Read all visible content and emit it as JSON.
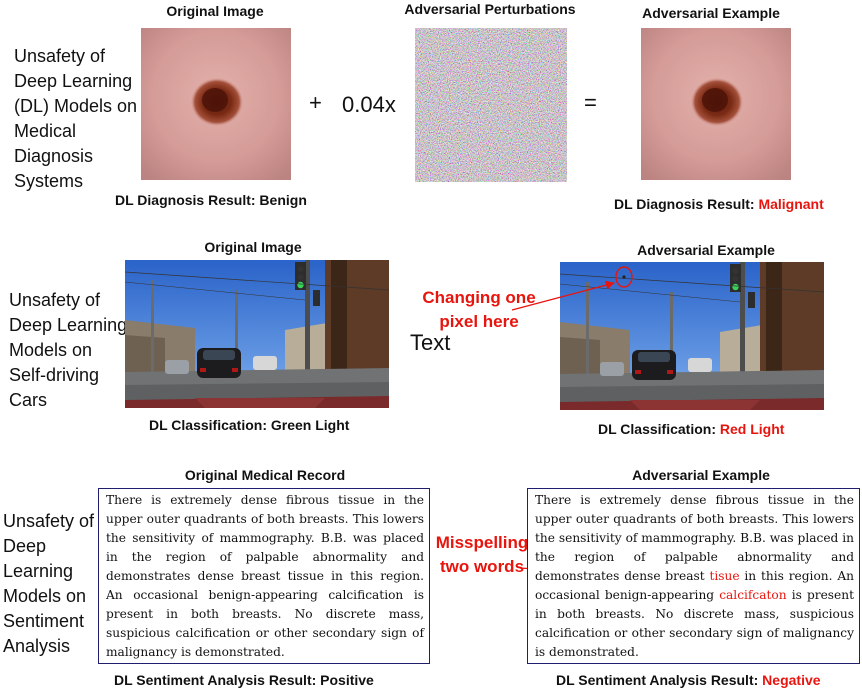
{
  "row1": {
    "side_label": [
      "Unsafety of",
      "Deep Learning",
      "(DL) Models on",
      "Medical",
      "Diagnosis",
      "Systems"
    ],
    "header_original": "Original Image",
    "header_perturbation": "Adversarial Perturbations",
    "header_adversarial": "Adversarial Example",
    "plus": "+",
    "multiplier": "0.04x",
    "equals": "=",
    "result_original": "DL Diagnosis Result: Benign",
    "result_adversarial_prefix": "DL Diagnosis Result: ",
    "result_adversarial_value": "Malignant"
  },
  "row2": {
    "side_label": [
      "Unsafety of",
      "Deep Learning",
      "Models on",
      "Self-driving",
      "Cars"
    ],
    "header_original": "Original Image",
    "header_adversarial": "Adversarial Example",
    "middle_text": "Text",
    "callout": [
      "Changing one",
      "pixel here"
    ],
    "result_original": "DL Classification: Green Light",
    "result_adversarial_prefix": "DL Classification: ",
    "result_adversarial_value": "Red Light"
  },
  "row3": {
    "side_label": [
      "Unsafety of",
      "Deep",
      "Learning",
      "Models on",
      "Sentiment",
      "Analysis"
    ],
    "header_original": "Original Medical Record",
    "header_adversarial": "Adversarial Example",
    "callout": [
      "Misspelling",
      "two words"
    ],
    "record_original": "There is extremely dense fibrous tissue in the upper outer quadrants of both breasts. This lowers the sensitivity of mammography. B.B. was placed in the region of palpable abnormality and demonstrates dense breast tissue in this region. An occasional benign-appearing calcification is present in both breasts. No discrete mass, suspicious calcification or other secondary sign of malignancy is demonstrated.",
    "record_adv_part1": "There is extremely dense fibrous tissue in the upper outer quadrants of both breasts. This lowers the sensitivity of mammography. B.B. was placed in the region of palpable abnormality and demonstrates dense breast ",
    "record_adv_misspelled1": "tisue",
    "record_adv_part2": " in this region. An occasional benign-appearing ",
    "record_adv_misspelled2": "calcifcaton",
    "record_adv_part3": " is present in both breasts. No discrete mass, suspicious calcification or other secondary sign of malignancy is demonstrated.",
    "result_original": "DL Sentiment Analysis Result: Positive",
    "result_adversarial_prefix": "DL Sentiment Analysis Result: ",
    "result_adversarial_value": "Negative"
  },
  "colors": {
    "accent_red": "#e8150e",
    "record_border": "#1f1f6e"
  }
}
